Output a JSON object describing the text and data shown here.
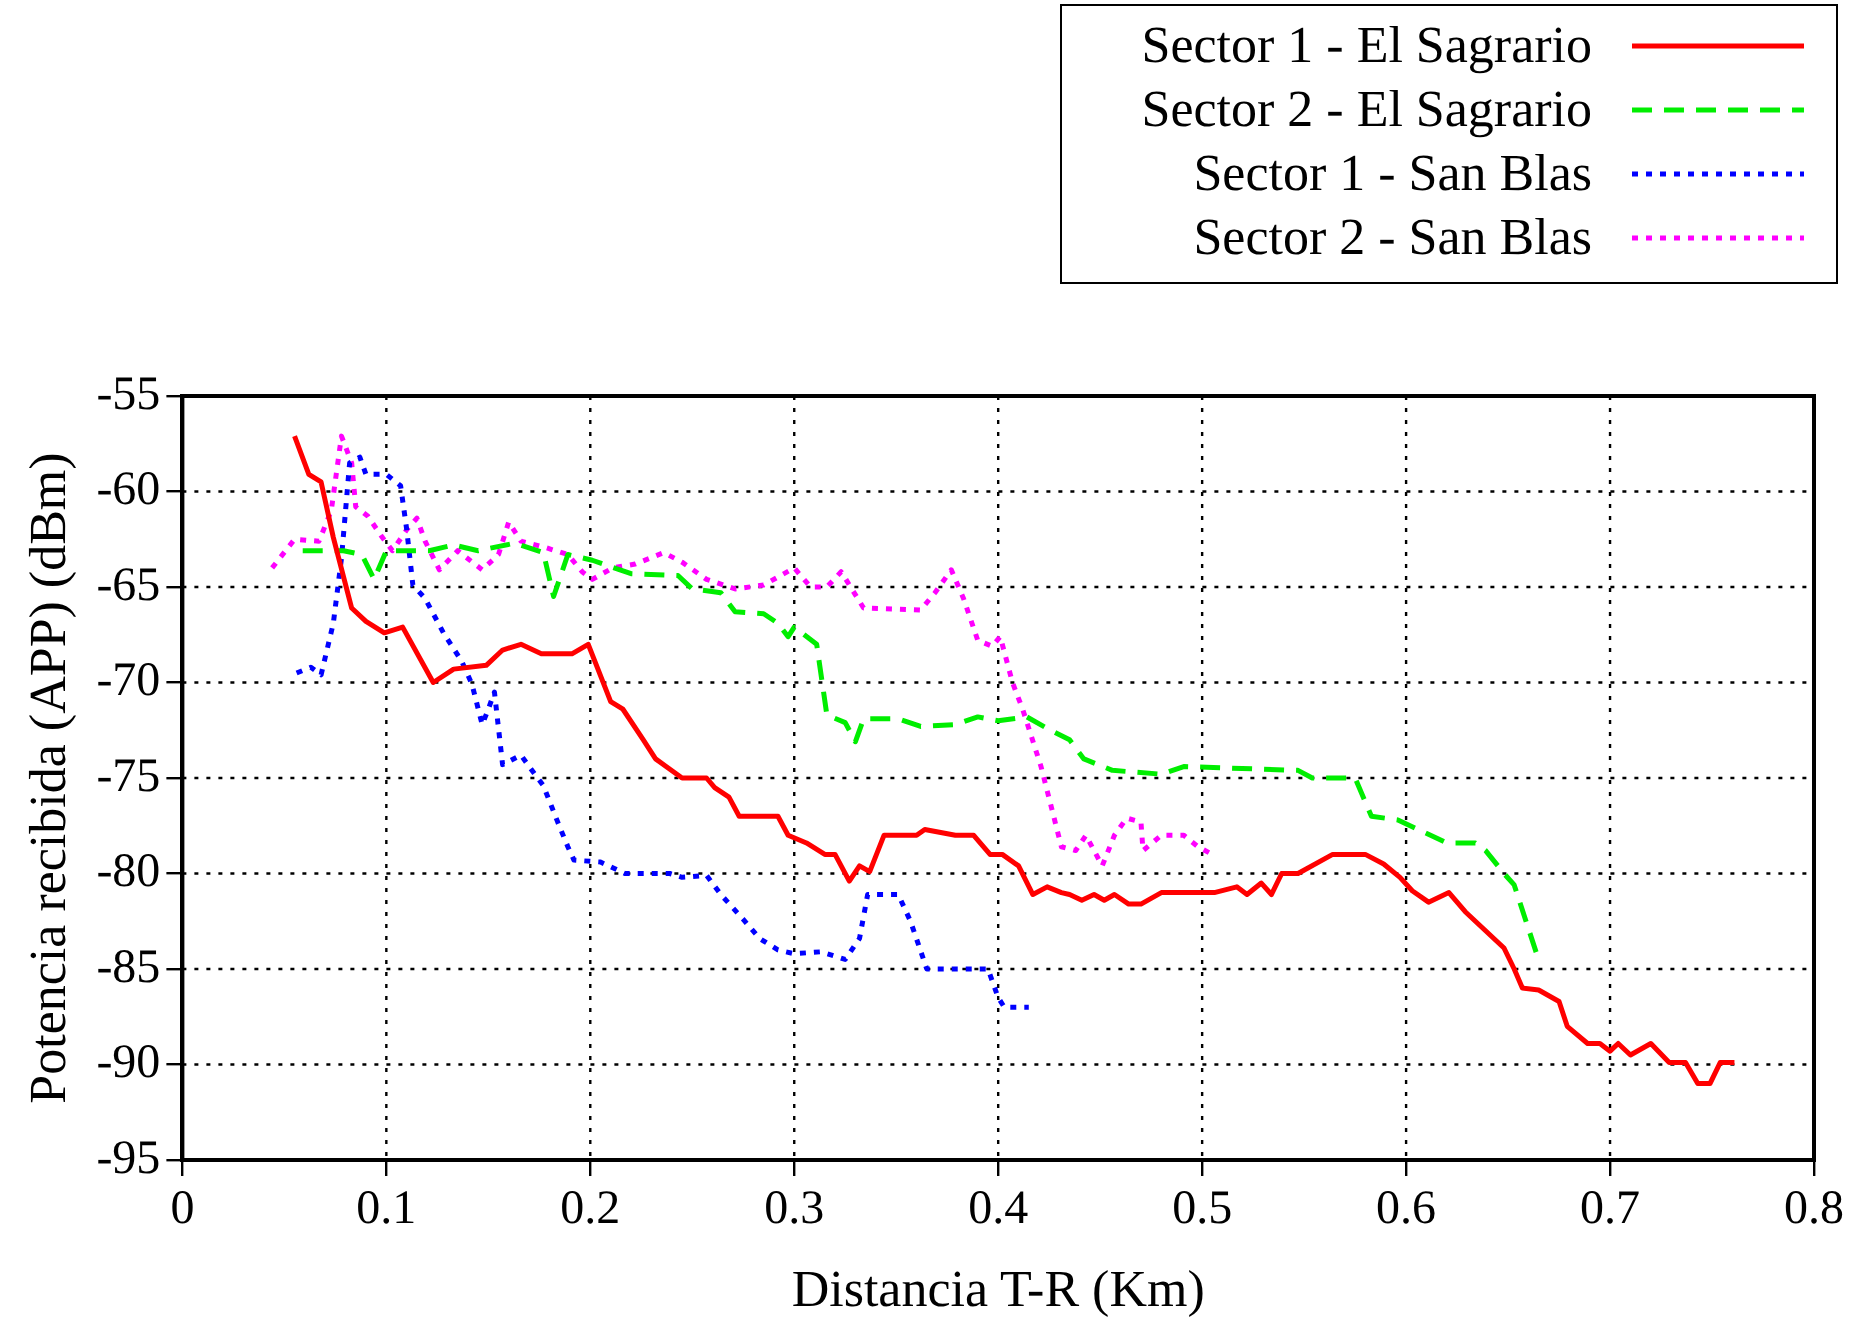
{
  "chart_data": {
    "type": "line",
    "xlabel": "Distancia T-R (Km)",
    "ylabel": "Potencia recibida (APP) (dBm)",
    "xlim": [
      0,
      0.8
    ],
    "xticks": [
      0,
      0.1,
      0.2,
      0.3,
      0.4,
      0.5,
      0.6,
      0.7,
      0.8
    ],
    "ylim": [
      -95,
      -55
    ],
    "yticks": [
      -95,
      -90,
      -85,
      -80,
      -75,
      -70,
      -65,
      -60,
      -55
    ],
    "grid": true,
    "legend": "top right",
    "marker": "none",
    "series": [
      {
        "name": "Sector 1 - El Sagrario",
        "color": "#ff0000",
        "line_style": "solid",
        "x": [
          0.055,
          0.062,
          0.068,
          0.074,
          0.083,
          0.09,
          0.099,
          0.108,
          0.123,
          0.133,
          0.149,
          0.157,
          0.166,
          0.176,
          0.191,
          0.199,
          0.21,
          0.216,
          0.226,
          0.232,
          0.245,
          0.257,
          0.261,
          0.268,
          0.273,
          0.292,
          0.297,
          0.306,
          0.315,
          0.32,
          0.327,
          0.332,
          0.337,
          0.344,
          0.36,
          0.364,
          0.379,
          0.388,
          0.396,
          0.402,
          0.41,
          0.417,
          0.424,
          0.431,
          0.435,
          0.441,
          0.447,
          0.452,
          0.457,
          0.464,
          0.47,
          0.48,
          0.506,
          0.517,
          0.522,
          0.529,
          0.534,
          0.539,
          0.547,
          0.564,
          0.58,
          0.589,
          0.597,
          0.603,
          0.611,
          0.621,
          0.629,
          0.648,
          0.653,
          0.657,
          0.665,
          0.675,
          0.679,
          0.689,
          0.695,
          0.7,
          0.704,
          0.71,
          0.72,
          0.729,
          0.737,
          0.743,
          0.749,
          0.754,
          0.761
        ],
        "values": [
          -57.1,
          -59.1,
          -59.5,
          -62.4,
          -66.1,
          -66.8,
          -67.4,
          -67.1,
          -70,
          -69.3,
          -69.1,
          -68.3,
          -68,
          -68.5,
          -68.5,
          -68,
          -71,
          -71.4,
          -73,
          -74,
          -75,
          -75,
          -75.5,
          -76,
          -77,
          -77,
          -78,
          -78.4,
          -79,
          -79,
          -80.4,
          -79.6,
          -79.9,
          -78,
          -78,
          -77.7,
          -78,
          -78,
          -79,
          -79,
          -79.6,
          -81.1,
          -80.7,
          -81,
          -81.1,
          -81.4,
          -81.1,
          -81.4,
          -81.1,
          -81.6,
          -81.6,
          -81,
          -81,
          -80.7,
          -81.1,
          -80.5,
          -81.1,
          -80,
          -80,
          -79,
          -79,
          -79.5,
          -80.2,
          -80.9,
          -81.5,
          -81,
          -82,
          -83.9,
          -85,
          -86,
          -86.1,
          -86.7,
          -88,
          -88.9,
          -88.9,
          -89.3,
          -88.9,
          -89.5,
          -88.9,
          -89.9,
          -89.9,
          -91,
          -91,
          -89.9,
          -89.9
        ]
      },
      {
        "name": "Sector 2 - El Sagrario",
        "color": "#00ee00",
        "line_style": "dashed",
        "x": [
          0.059,
          0.079,
          0.088,
          0.094,
          0.1,
          0.121,
          0.133,
          0.145,
          0.163,
          0.177,
          0.182,
          0.189,
          0.201,
          0.22,
          0.243,
          0.25,
          0.264,
          0.271,
          0.285,
          0.292,
          0.297,
          0.3,
          0.311,
          0.316,
          0.325,
          0.33,
          0.334,
          0.351,
          0.362,
          0.379,
          0.39,
          0.4,
          0.414,
          0.424,
          0.435,
          0.442,
          0.456,
          0.48,
          0.491,
          0.547,
          0.554,
          0.575,
          0.583,
          0.596,
          0.62,
          0.634,
          0.639,
          0.648,
          0.653,
          0.664
        ],
        "values": [
          -63.1,
          -63.1,
          -63.3,
          -64.6,
          -63.1,
          -63.1,
          -62.8,
          -63.1,
          -62.7,
          -63.2,
          -65.5,
          -63.3,
          -63.6,
          -64.3,
          -64.4,
          -65.1,
          -65.3,
          -66.3,
          -66.4,
          -66.9,
          -67.6,
          -67.1,
          -68,
          -71.7,
          -72.1,
          -73.1,
          -71.9,
          -71.9,
          -72.3,
          -72.2,
          -71.8,
          -72,
          -71.8,
          -72.4,
          -73,
          -74,
          -74.6,
          -74.8,
          -74.4,
          -74.6,
          -75,
          -75,
          -77,
          -77.2,
          -78.4,
          -78.4,
          -78.8,
          -80,
          -80.6,
          -84.2
        ]
      },
      {
        "name": "Sector 1 - San Blas",
        "color": "#0000ff",
        "line_style": "dotted",
        "x": [
          0.056,
          0.063,
          0.068,
          0.074,
          0.078,
          0.082,
          0.087,
          0.09,
          0.1,
          0.107,
          0.11,
          0.113,
          0.119,
          0.128,
          0.137,
          0.142,
          0.147,
          0.15,
          0.153,
          0.157,
          0.166,
          0.17,
          0.177,
          0.184,
          0.189,
          0.192,
          0.205,
          0.217,
          0.239,
          0.245,
          0.257,
          0.264,
          0.275,
          0.283,
          0.292,
          0.3,
          0.313,
          0.325,
          0.332,
          0.336,
          0.351,
          0.357,
          0.365,
          0.39,
          0.395,
          0.4,
          0.403,
          0.415
        ],
        "values": [
          -69.5,
          -69.2,
          -69.6,
          -66.9,
          -63.5,
          -58.5,
          -58.2,
          -59.1,
          -59.1,
          -59.7,
          -62,
          -64.9,
          -65.6,
          -67.4,
          -68.9,
          -70.1,
          -72.2,
          -71.4,
          -70.5,
          -74.3,
          -73.8,
          -74.4,
          -75.4,
          -77.3,
          -78.6,
          -79.3,
          -79.4,
          -80,
          -80,
          -80.2,
          -80.1,
          -81.1,
          -82.4,
          -83.4,
          -84,
          -84.2,
          -84.1,
          -84.5,
          -83.4,
          -81.1,
          -81.1,
          -82.5,
          -85,
          -85,
          -85,
          -86.5,
          -87,
          -87
        ]
      },
      {
        "name": "Sector 2 - San Blas",
        "color": "#ff00ff",
        "line_style": "dotted",
        "x": [
          0.044,
          0.055,
          0.067,
          0.073,
          0.078,
          0.083,
          0.085,
          0.091,
          0.098,
          0.103,
          0.11,
          0.115,
          0.119,
          0.126,
          0.135,
          0.147,
          0.155,
          0.16,
          0.166,
          0.177,
          0.189,
          0.196,
          0.201,
          0.211,
          0.222,
          0.236,
          0.245,
          0.257,
          0.271,
          0.285,
          0.295,
          0.3,
          0.308,
          0.316,
          0.323,
          0.334,
          0.362,
          0.369,
          0.377,
          0.383,
          0.39,
          0.397,
          0.401,
          0.407,
          0.412,
          0.421,
          0.431,
          0.438,
          0.443,
          0.451,
          0.457,
          0.463,
          0.47,
          0.471,
          0.48,
          0.491,
          0.498,
          0.505
        ],
        "values": [
          -64,
          -62.5,
          -62.6,
          -61,
          -57.1,
          -58.5,
          -60.8,
          -61.3,
          -62.4,
          -63.1,
          -62,
          -61.4,
          -62.6,
          -64.1,
          -63.1,
          -64.1,
          -63.3,
          -61.6,
          -62.6,
          -62.9,
          -63.3,
          -64.2,
          -64.6,
          -64,
          -63.8,
          -63.2,
          -63.7,
          -64.6,
          -65.1,
          -64.9,
          -64.3,
          -64,
          -65,
          -65,
          -64.2,
          -66.1,
          -66.2,
          -65.3,
          -64.1,
          -65.6,
          -67.8,
          -68.1,
          -67.6,
          -70,
          -71.4,
          -74.4,
          -78.6,
          -78.8,
          -78,
          -79.6,
          -78,
          -77.1,
          -77.3,
          -78.8,
          -78,
          -78,
          -78.6,
          -79
        ]
      }
    ]
  }
}
